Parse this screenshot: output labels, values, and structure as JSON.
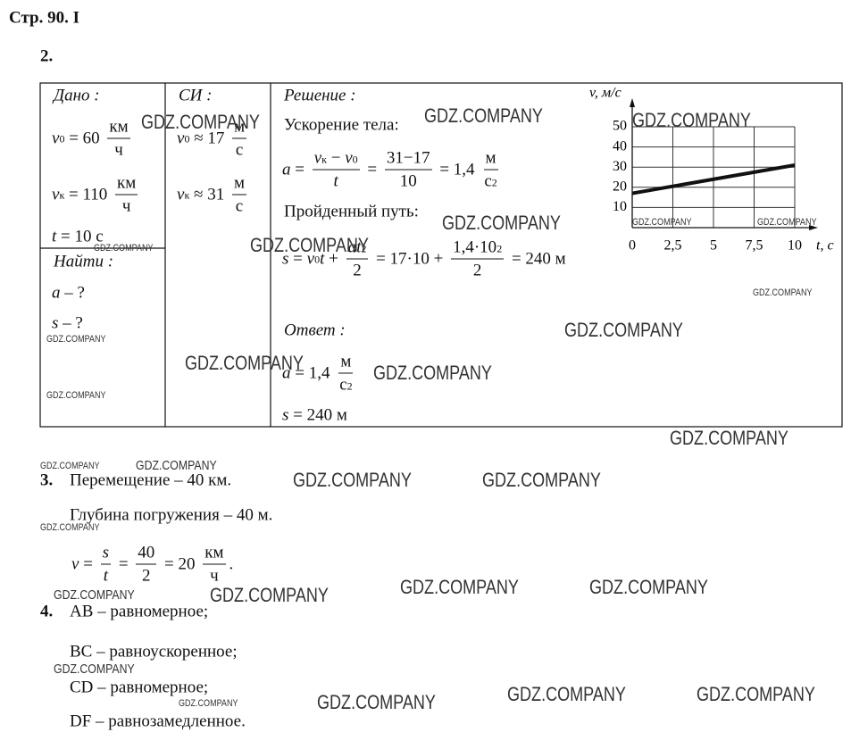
{
  "header": {
    "title": "Стр. 90. I"
  },
  "watermark": "GDZ.COMPANY",
  "problem2": {
    "number": "2.",
    "given": {
      "heading": "Дано :",
      "lines": [
        [
          {
            "it": "v",
            "sub": "0"
          },
          " = 60 ",
          {
            "num": [
              "км"
            ],
            "den": [
              "ч"
            ]
          }
        ],
        [
          {
            "it": "v",
            "sub": "к"
          },
          " = 110 ",
          {
            "num": [
              "км"
            ],
            "den": [
              "ч"
            ]
          }
        ],
        [
          {
            "it": "t"
          },
          " = 10 с"
        ]
      ]
    },
    "find": {
      "heading": "Найти :",
      "lines": [
        [
          {
            "it": "a"
          },
          " – ?"
        ],
        [
          {
            "it": "s"
          },
          " – ?"
        ]
      ]
    },
    "si": {
      "heading": "СИ :",
      "lines": [
        [
          {
            "it": "v",
            "sub": "0"
          },
          " ≈ 17 ",
          {
            "num": [
              "м"
            ],
            "den": [
              "с"
            ]
          }
        ],
        [
          {
            "it": "v",
            "sub": "к"
          },
          " ≈ 31 ",
          {
            "num": [
              "м"
            ],
            "den": [
              "с"
            ]
          }
        ]
      ]
    },
    "solution": {
      "heading": "Решение :",
      "acceleration_label": "Ускорение тела:",
      "acceleration_formula": [
        {
          "it": "a"
        },
        " = ",
        {
          "num": [
            {
              "it": "v",
              "sub": "к"
            },
            " − ",
            {
              "it": "v",
              "sub": "0"
            }
          ],
          "den": [
            {
              "it": "t"
            }
          ]
        },
        " = ",
        {
          "num": [
            "31−17"
          ],
          "den": [
            "10"
          ]
        },
        " = 1,4 ",
        {
          "num": [
            "м"
          ],
          "den": [
            "с",
            {
              "sup": "2"
            }
          ]
        }
      ],
      "distance_label": "Пройденный путь:",
      "distance_formula": [
        {
          "it": "s"
        },
        " = ",
        {
          "it": "v",
          "sub": "0"
        },
        {
          "it": "t"
        },
        " + ",
        {
          "num": [
            {
              "it": "at"
            },
            {
              "sup": "2"
            }
          ],
          "den": [
            "2"
          ]
        },
        " = 17·10 + ",
        {
          "num": [
            "1,4·10",
            {
              "sup": "2"
            }
          ],
          "den": [
            "2"
          ]
        },
        " = 240 м"
      ],
      "answer_heading": "Ответ :",
      "answer_lines": [
        [
          {
            "it": "a"
          },
          " = 1,4 ",
          {
            "num": [
              "м"
            ],
            "den": [
              "с",
              {
                "sup": "2"
              }
            ]
          }
        ],
        [
          {
            "it": "s"
          },
          " = 240 м"
        ]
      ]
    },
    "graph": {
      "type": "line",
      "y_label": "v, м/с",
      "x_label": "t, с",
      "xlim": [
        0,
        10
      ],
      "ylim": [
        0,
        50
      ],
      "xticks": [
        0,
        {
          "value": 2.5,
          "label": "2,5"
        },
        5,
        {
          "value": 7.5,
          "label": "7,5"
        },
        10
      ],
      "yticks": [
        10,
        20,
        30,
        40,
        50
      ],
      "grid": true,
      "x": [
        0,
        10
      ],
      "values": [
        17,
        31
      ],
      "color": "#111111"
    }
  },
  "problem3": {
    "number": "3.",
    "lines": [
      "Перемещение – 40 км.",
      "Глубина погружения – 40 м."
    ],
    "formula": [
      {
        "it": "v"
      },
      " = ",
      {
        "num": [
          {
            "it": "s"
          }
        ],
        "den": [
          {
            "it": "t"
          }
        ]
      },
      " = ",
      {
        "num": [
          "40"
        ],
        "den": [
          "2"
        ]
      },
      " = 20 ",
      {
        "num": [
          "км"
        ],
        "den": [
          "ч"
        ]
      },
      "."
    ]
  },
  "problem4": {
    "number": "4.",
    "lines": [
      "AB – равномерное;",
      "BC – равноускоренное;",
      "CD – равномерное;",
      "DF – равнозамедленное."
    ]
  }
}
